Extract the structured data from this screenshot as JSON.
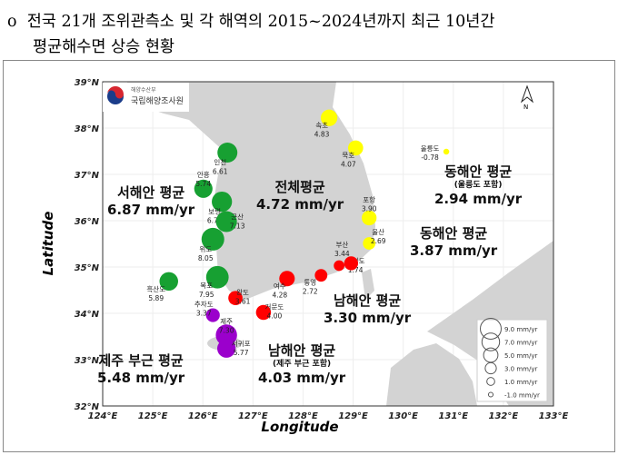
{
  "title": {
    "bullet": "o",
    "line1": "전국 21개 조위관측소 및 각 해역의 2015~2024년까지 최근 10년간",
    "line2": "평균해수면 상승 현황"
  },
  "logo": {
    "org_small": "해양수산부",
    "org_main": "국립해양조사원"
  },
  "north_arrow": "N",
  "axes": {
    "xlabel": "Longitude",
    "ylabel": "Latitude",
    "xticks": [
      "124°E",
      "125°E",
      "126°E",
      "127°E",
      "128°E",
      "129°E",
      "130°E",
      "131°E",
      "132°E",
      "133°E"
    ],
    "yticks": [
      "39°N",
      "38°N",
      "37°N",
      "36°N",
      "35°N",
      "34°N",
      "33°N",
      "32°N"
    ]
  },
  "colors": {
    "west": "#17a032",
    "east": "#ffff00",
    "south": "#ff0000",
    "jeju": "#9b00cc",
    "land": "#d3d3d3"
  },
  "stations": [
    {
      "name": "인천",
      "rate": "6.61",
      "lon": 126.49,
      "lat": 37.47,
      "region": "west"
    },
    {
      "name": "안흥",
      "rate": "5.74",
      "lon": 126.01,
      "lat": 36.69,
      "region": "west"
    },
    {
      "name": "보령",
      "rate": "6.74",
      "lon": 126.38,
      "lat": 36.41,
      "region": "west"
    },
    {
      "name": "군산",
      "rate": "7.13",
      "lon": 126.47,
      "lat": 35.98,
      "region": "west"
    },
    {
      "name": "위도",
      "rate": "8.05",
      "lon": 126.2,
      "lat": 35.6,
      "region": "west"
    },
    {
      "name": "목포",
      "rate": "7.95",
      "lon": 126.29,
      "lat": 34.78,
      "region": "west"
    },
    {
      "name": "흑산도",
      "rate": "5.89",
      "lon": 125.32,
      "lat": 34.69,
      "region": "west"
    },
    {
      "name": "완도",
      "rate": "3.61",
      "lon": 126.65,
      "lat": 34.33,
      "region": "south"
    },
    {
      "name": "추자도",
      "rate": "3.37",
      "lon": 126.2,
      "lat": 33.96,
      "region": "jeju"
    },
    {
      "name": "제주",
      "rate": "7.30",
      "lon": 126.47,
      "lat": 33.53,
      "region": "jeju"
    },
    {
      "name": "서귀포",
      "rate": "5.77",
      "lon": 126.47,
      "lat": 33.24,
      "region": "jeju"
    },
    {
      "name": "거문도",
      "rate": "4.00",
      "lon": 127.21,
      "lat": 34.02,
      "region": "south"
    },
    {
      "name": "여수",
      "rate": "4.28",
      "lon": 127.68,
      "lat": 34.75,
      "region": "south"
    },
    {
      "name": "통영",
      "rate": "2.72",
      "lon": 128.36,
      "lat": 34.82,
      "region": "south"
    },
    {
      "name": "가덕도",
      "rate": "1.74",
      "lon": 128.72,
      "lat": 35.03,
      "region": "south"
    },
    {
      "name": "부산",
      "rate": "3.44",
      "lon": 128.96,
      "lat": 35.08,
      "region": "south"
    },
    {
      "name": "울산",
      "rate": "2.69",
      "lon": 129.32,
      "lat": 35.51,
      "region": "east"
    },
    {
      "name": "포항",
      "rate": "3.90",
      "lon": 129.32,
      "lat": 36.06,
      "region": "east"
    },
    {
      "name": "묵호",
      "rate": "4.07",
      "lon": 129.05,
      "lat": 37.57,
      "region": "east"
    },
    {
      "name": "속초",
      "rate": "4.83",
      "lon": 128.52,
      "lat": 38.22,
      "region": "east"
    },
    {
      "name": "울릉도",
      "rate": "-0.78",
      "lon": 130.86,
      "lat": 37.49,
      "region": "east"
    }
  ],
  "region_labels": {
    "west": {
      "title": "서해안 평균",
      "value": "6.87 mm/yr"
    },
    "total": {
      "title": "전체평균",
      "value": "4.72 mm/yr"
    },
    "east_ul": {
      "title": "동해안 평균",
      "note": "(울릉도 포함)",
      "value": "2.94 mm/yr"
    },
    "east": {
      "title": "동해안 평균",
      "value": "3.87 mm/yr"
    },
    "south": {
      "title": "남해안 평균",
      "value": "3.30 mm/yr"
    },
    "south_jeju": {
      "title": "남해안 평균",
      "note": "(제주 부근 포함)",
      "value": "4.03 mm/yr"
    },
    "jeju": {
      "title": "제주 부근 평균",
      "value": "5.48 mm/yr"
    }
  },
  "legend": [
    {
      "value": 9.0,
      "label": "9.0 mm/yr"
    },
    {
      "value": 7.0,
      "label": "7.0 mm/yr"
    },
    {
      "value": 5.0,
      "label": "5.0 mm/yr"
    },
    {
      "value": 3.0,
      "label": "3.0 mm/yr"
    },
    {
      "value": 1.0,
      "label": "1.0 mm/yr"
    },
    {
      "value": -1.0,
      "label": "-1.0 mm/yr"
    }
  ]
}
